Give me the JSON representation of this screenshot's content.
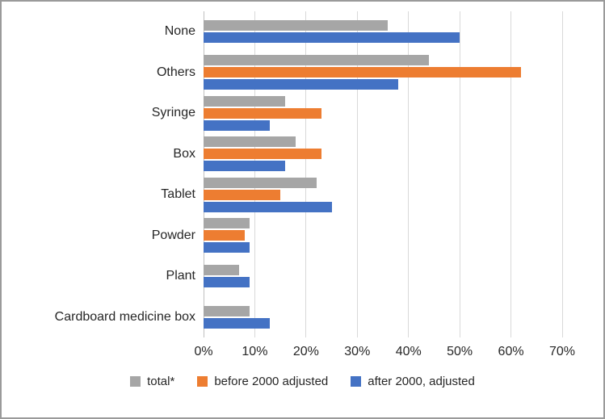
{
  "chart_data": {
    "type": "bar",
    "orientation": "horizontal",
    "title": "",
    "categories": [
      "None",
      "Others",
      "Syringe",
      "Box",
      "Tablet",
      "Powder",
      "Plant",
      "Cardboard medicine box"
    ],
    "series": [
      {
        "name": "total*",
        "color": "#a6a6a6",
        "values": [
          36,
          44,
          16,
          18,
          22,
          9,
          7,
          9
        ]
      },
      {
        "name": "before 2000 adjusted",
        "color": "#ed7d31",
        "values": [
          null,
          62,
          23,
          23,
          15,
          8,
          null,
          null
        ]
      },
      {
        "name": "after 2000, adjusted",
        "color": "#4472c4",
        "values": [
          50,
          38,
          13,
          16,
          25,
          9,
          9,
          13
        ]
      }
    ],
    "x_axis": {
      "min": 0,
      "max": 70,
      "tick_step": 10,
      "tick_labels": [
        "0%",
        "10%",
        "20%",
        "30%",
        "40%",
        "50%",
        "60%",
        "70%"
      ]
    },
    "grid": true,
    "legend_position": "bottom",
    "colors": {
      "gridline": "#d9d9d9",
      "axis_line": "#bfbfbf",
      "text": "#262626"
    }
  }
}
